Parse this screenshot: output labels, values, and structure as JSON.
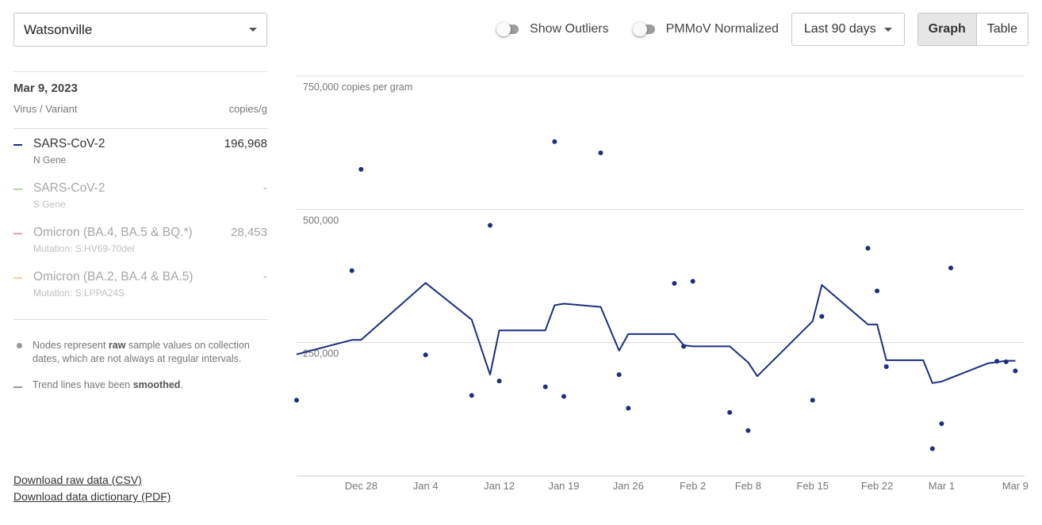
{
  "location": {
    "value": "Watsonville"
  },
  "toolbar": {
    "show_outliers_label": "Show Outliers",
    "pmmov_label": "PMMoV Normalized",
    "range_value": "Last 90 days",
    "graph_label": "Graph",
    "table_label": "Table"
  },
  "side": {
    "date": "Mar 9, 2023",
    "col_variant": "Virus / Variant",
    "col_units": "copies/g",
    "series": [
      {
        "name": "SARS-CoV-2",
        "sub": "N Gene",
        "value": "196,968",
        "color": "#1b2f7d",
        "active": true
      },
      {
        "name": "SARS-CoV-2",
        "sub": "S Gene",
        "value": "-",
        "color": "#b6d7a8",
        "active": false
      },
      {
        "name": "Omicron (BA.4, BA.5 & BQ.*)",
        "sub": "Mutation: S:HV69-70del",
        "value": "28,453",
        "color": "#e6a0b0",
        "active": false
      },
      {
        "name": "Omicron (BA.2, BA.4 & BA.5)",
        "sub": "Mutation: S:LPPA24S",
        "value": "-",
        "color": "#f0d49a",
        "active": false
      }
    ],
    "notes": {
      "nodes_pre": "Nodes represent",
      "nodes_bold": "raw",
      "nodes_post": "sample values on collection dates, which are not always at regular intervals.",
      "trend_pre": "Trend lines have been",
      "trend_bold": "smoothed",
      "trend_post": "."
    }
  },
  "downloads": {
    "csv": "Download raw data (CSV)",
    "pdf": "Download data dictionary (PDF)"
  },
  "chart_data": {
    "type": "line",
    "ylabel": "copies per gram",
    "ylim": [
      0,
      750000
    ],
    "yticks": [
      {
        "value": 750000,
        "label": "750,000 copies per gram"
      },
      {
        "value": 500000,
        "label": "500,000"
      },
      {
        "value": 250000,
        "label": "250,000"
      }
    ],
    "xlim": [
      "2022-12-21",
      "2023-03-10"
    ],
    "xticks": [
      {
        "date": "2022-12-28",
        "label": "Dec 28"
      },
      {
        "date": "2023-01-04",
        "label": "Jan 4"
      },
      {
        "date": "2023-01-12",
        "label": "Jan 12"
      },
      {
        "date": "2023-01-19",
        "label": "Jan 19"
      },
      {
        "date": "2023-01-26",
        "label": "Jan 26"
      },
      {
        "date": "2023-02-02",
        "label": "Feb 2"
      },
      {
        "date": "2023-02-08",
        "label": "Feb 8"
      },
      {
        "date": "2023-02-15",
        "label": "Feb 15"
      },
      {
        "date": "2023-02-22",
        "label": "Feb 22"
      },
      {
        "date": "2023-03-01",
        "label": "Mar 1"
      },
      {
        "date": "2023-03-09",
        "label": "Mar 9"
      }
    ],
    "series": [
      {
        "name": "SARS-CoV-2",
        "color": "#1b2f7d",
        "raw": [
          {
            "x": "2022-12-21",
            "y": 142000
          },
          {
            "x": "2022-12-27",
            "y": 385000
          },
          {
            "x": "2022-12-28",
            "y": 575000
          },
          {
            "x": "2023-01-04",
            "y": 227000
          },
          {
            "x": "2023-01-09",
            "y": 151000
          },
          {
            "x": "2023-01-11",
            "y": 470000
          },
          {
            "x": "2023-01-12",
            "y": 178000
          },
          {
            "x": "2023-01-17",
            "y": 167000
          },
          {
            "x": "2023-01-18",
            "y": 627000
          },
          {
            "x": "2023-01-19",
            "y": 149000
          },
          {
            "x": "2023-01-23",
            "y": 606000
          },
          {
            "x": "2023-01-25",
            "y": 190000
          },
          {
            "x": "2023-01-26",
            "y": 127000
          },
          {
            "x": "2023-01-31",
            "y": 361000
          },
          {
            "x": "2023-02-01",
            "y": 243000
          },
          {
            "x": "2023-02-02",
            "y": 365000
          },
          {
            "x": "2023-02-06",
            "y": 119000
          },
          {
            "x": "2023-02-08",
            "y": 85000
          },
          {
            "x": "2023-02-15",
            "y": 142000
          },
          {
            "x": "2023-02-16",
            "y": 299000
          },
          {
            "x": "2023-02-21",
            "y": 427000
          },
          {
            "x": "2023-02-22",
            "y": 347000
          },
          {
            "x": "2023-02-23",
            "y": 205000
          },
          {
            "x": "2023-02-28",
            "y": 51000
          },
          {
            "x": "2023-03-01",
            "y": 98000
          },
          {
            "x": "2023-03-02",
            "y": 390000
          },
          {
            "x": "2023-03-07",
            "y": 215000
          },
          {
            "x": "2023-03-08",
            "y": 214000
          },
          {
            "x": "2023-03-09",
            "y": 197000
          }
        ],
        "trend": [
          {
            "x": "2022-12-21",
            "y": 228000
          },
          {
            "x": "2022-12-27",
            "y": 255000
          },
          {
            "x": "2022-12-28",
            "y": 255000
          },
          {
            "x": "2023-01-04",
            "y": 362000
          },
          {
            "x": "2023-01-09",
            "y": 293000
          },
          {
            "x": "2023-01-11",
            "y": 190000
          },
          {
            "x": "2023-01-12",
            "y": 273000
          },
          {
            "x": "2023-01-17",
            "y": 273000
          },
          {
            "x": "2023-01-18",
            "y": 320000
          },
          {
            "x": "2023-01-19",
            "y": 323000
          },
          {
            "x": "2023-01-23",
            "y": 317000
          },
          {
            "x": "2023-01-25",
            "y": 235000
          },
          {
            "x": "2023-01-26",
            "y": 266000
          },
          {
            "x": "2023-01-31",
            "y": 266000
          },
          {
            "x": "2023-02-01",
            "y": 245000
          },
          {
            "x": "2023-02-02",
            "y": 243000
          },
          {
            "x": "2023-02-06",
            "y": 243000
          },
          {
            "x": "2023-02-08",
            "y": 213000
          },
          {
            "x": "2023-02-09",
            "y": 187000
          },
          {
            "x": "2023-02-15",
            "y": 290000
          },
          {
            "x": "2023-02-16",
            "y": 358000
          },
          {
            "x": "2023-02-21",
            "y": 284000
          },
          {
            "x": "2023-02-22",
            "y": 284000
          },
          {
            "x": "2023-02-23",
            "y": 217000
          },
          {
            "x": "2023-02-27",
            "y": 217000
          },
          {
            "x": "2023-02-28",
            "y": 174000
          },
          {
            "x": "2023-03-01",
            "y": 177000
          },
          {
            "x": "2023-03-06",
            "y": 211000
          },
          {
            "x": "2023-03-08",
            "y": 216000
          },
          {
            "x": "2023-03-09",
            "y": 216000
          }
        ]
      }
    ]
  }
}
